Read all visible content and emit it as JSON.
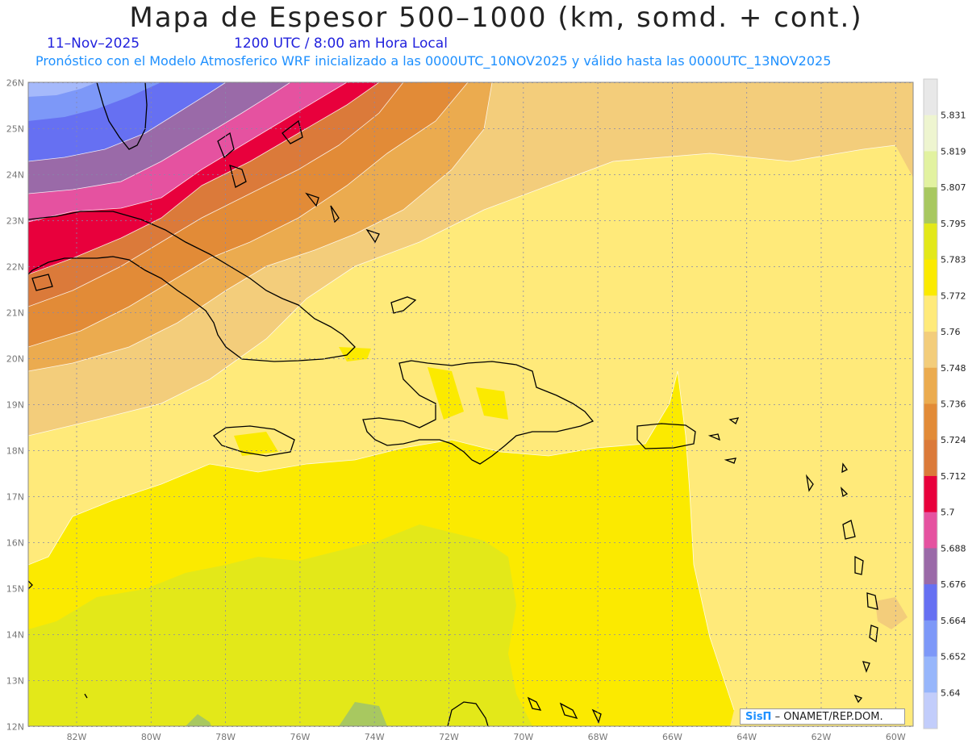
{
  "header": {
    "title": "Mapa de Espesor 500–1000 (km, somd. + cont.)",
    "date": "11–Nov–2025",
    "time": "1200 UTC / 8:00 am Hora Local",
    "subtitle": "Pronóstico con el Modelo Atmosferico WRF inicializado a las 0000UTC_10NOV2025 y válido hasta las  0000UTC_13NOV2025"
  },
  "axes": {
    "lat_labels": [
      "26N",
      "25N",
      "24N",
      "23N",
      "22N",
      "21N",
      "20N",
      "19N",
      "18N",
      "17N",
      "16N",
      "15N",
      "14N",
      "13N",
      "12N"
    ],
    "lon_labels": [
      "82W",
      "80W",
      "78W",
      "76W",
      "74W",
      "72W",
      "70W",
      "68W",
      "66W",
      "64W",
      "62W",
      "60W"
    ]
  },
  "legend": {
    "levels": [
      "5.831",
      "5.819",
      "5.807",
      "5.795",
      "5.783",
      "5.772",
      "5.76",
      "5.748",
      "5.736",
      "5.724",
      "5.712",
      "5.7",
      "5.688",
      "5.676",
      "5.664",
      "5.652",
      "5.64"
    ],
    "colors": [
      "#e8e8e8",
      "#eef5d0",
      "#e2f2a0",
      "#a8c860",
      "#e3e819",
      "#fbea00",
      "#ffea7a",
      "#f3cd7b",
      "#ebab4f",
      "#e28b37",
      "#db7a3a",
      "#e8003c",
      "#e552a0",
      "#9a6aa8",
      "#6670f2",
      "#7d98f8",
      "#97b6fb",
      "#c2cdfb"
    ],
    "color_names": [
      "gray",
      "pale-yellow",
      "light-green",
      "green",
      "yellow-green",
      "yellow",
      "light-yellow",
      "tan",
      "light-orange",
      "orange",
      "dark-orange",
      "red",
      "pink",
      "purple",
      "blue",
      "med-blue",
      "light-blue",
      "pale-blue"
    ]
  },
  "credit": {
    "logo": "SisΠ",
    "text": "– ONAMET/REP.DOM."
  }
}
